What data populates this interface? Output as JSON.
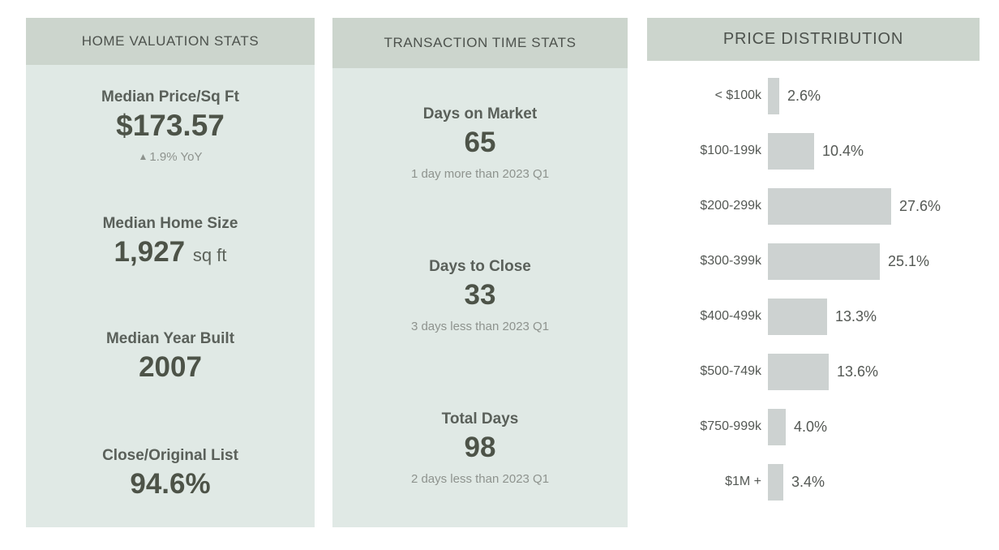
{
  "panels": {
    "home_valuation": {
      "title": "HOME VALUATION STATS",
      "stats": [
        {
          "label": "Median Price/Sq Ft",
          "value": "$173.57",
          "note_icon": "▲",
          "note": "1.9% YoY"
        },
        {
          "label": "Median Home Size",
          "value": "1,927",
          "suffix": "sq ft"
        },
        {
          "label": "Median Year Built",
          "value": "2007"
        },
        {
          "label": "Close/Original List",
          "value": "94.6%"
        }
      ]
    },
    "transaction_time": {
      "title": "TRANSACTION TIME STATS",
      "stats": [
        {
          "label": "Days on Market",
          "value": "65",
          "note": "1 day more than 2023 Q1"
        },
        {
          "label": "Days to Close",
          "value": "33",
          "note": "3 days less than 2023 Q1"
        },
        {
          "label": "Total Days",
          "value": "98",
          "note": "2 days less than 2023 Q1"
        }
      ]
    },
    "price_distribution": {
      "title": "PRICE DISTRIBUTION"
    }
  },
  "chart_data": {
    "type": "bar",
    "orientation": "horizontal",
    "title": "PRICE DISTRIBUTION",
    "categories": [
      "< $100k",
      "$100-199k",
      "$200-299k",
      "$300-399k",
      "$400-499k",
      "$500-749k",
      "$750-999k",
      "$1M +"
    ],
    "values": [
      2.6,
      10.4,
      27.6,
      25.1,
      13.3,
      13.6,
      4.0,
      3.4
    ],
    "value_labels": [
      "2.6%",
      "10.4%",
      "27.6%",
      "25.1%",
      "13.3%",
      "13.6%",
      "4.0%",
      "3.4%"
    ],
    "xlabel": "",
    "ylabel": "",
    "xlim": [
      0,
      30
    ],
    "grid": false,
    "legend": false,
    "bar_color": "#cdd2d1"
  },
  "colors": {
    "background": "#ffffff",
    "header_bg": "#ccd5cd",
    "panel_bg": "#e0e9e5",
    "bar_fill": "#cdd2d1",
    "value_text": "#4d5348",
    "label_text": "#5a605a",
    "muted_text": "#8e938e"
  }
}
